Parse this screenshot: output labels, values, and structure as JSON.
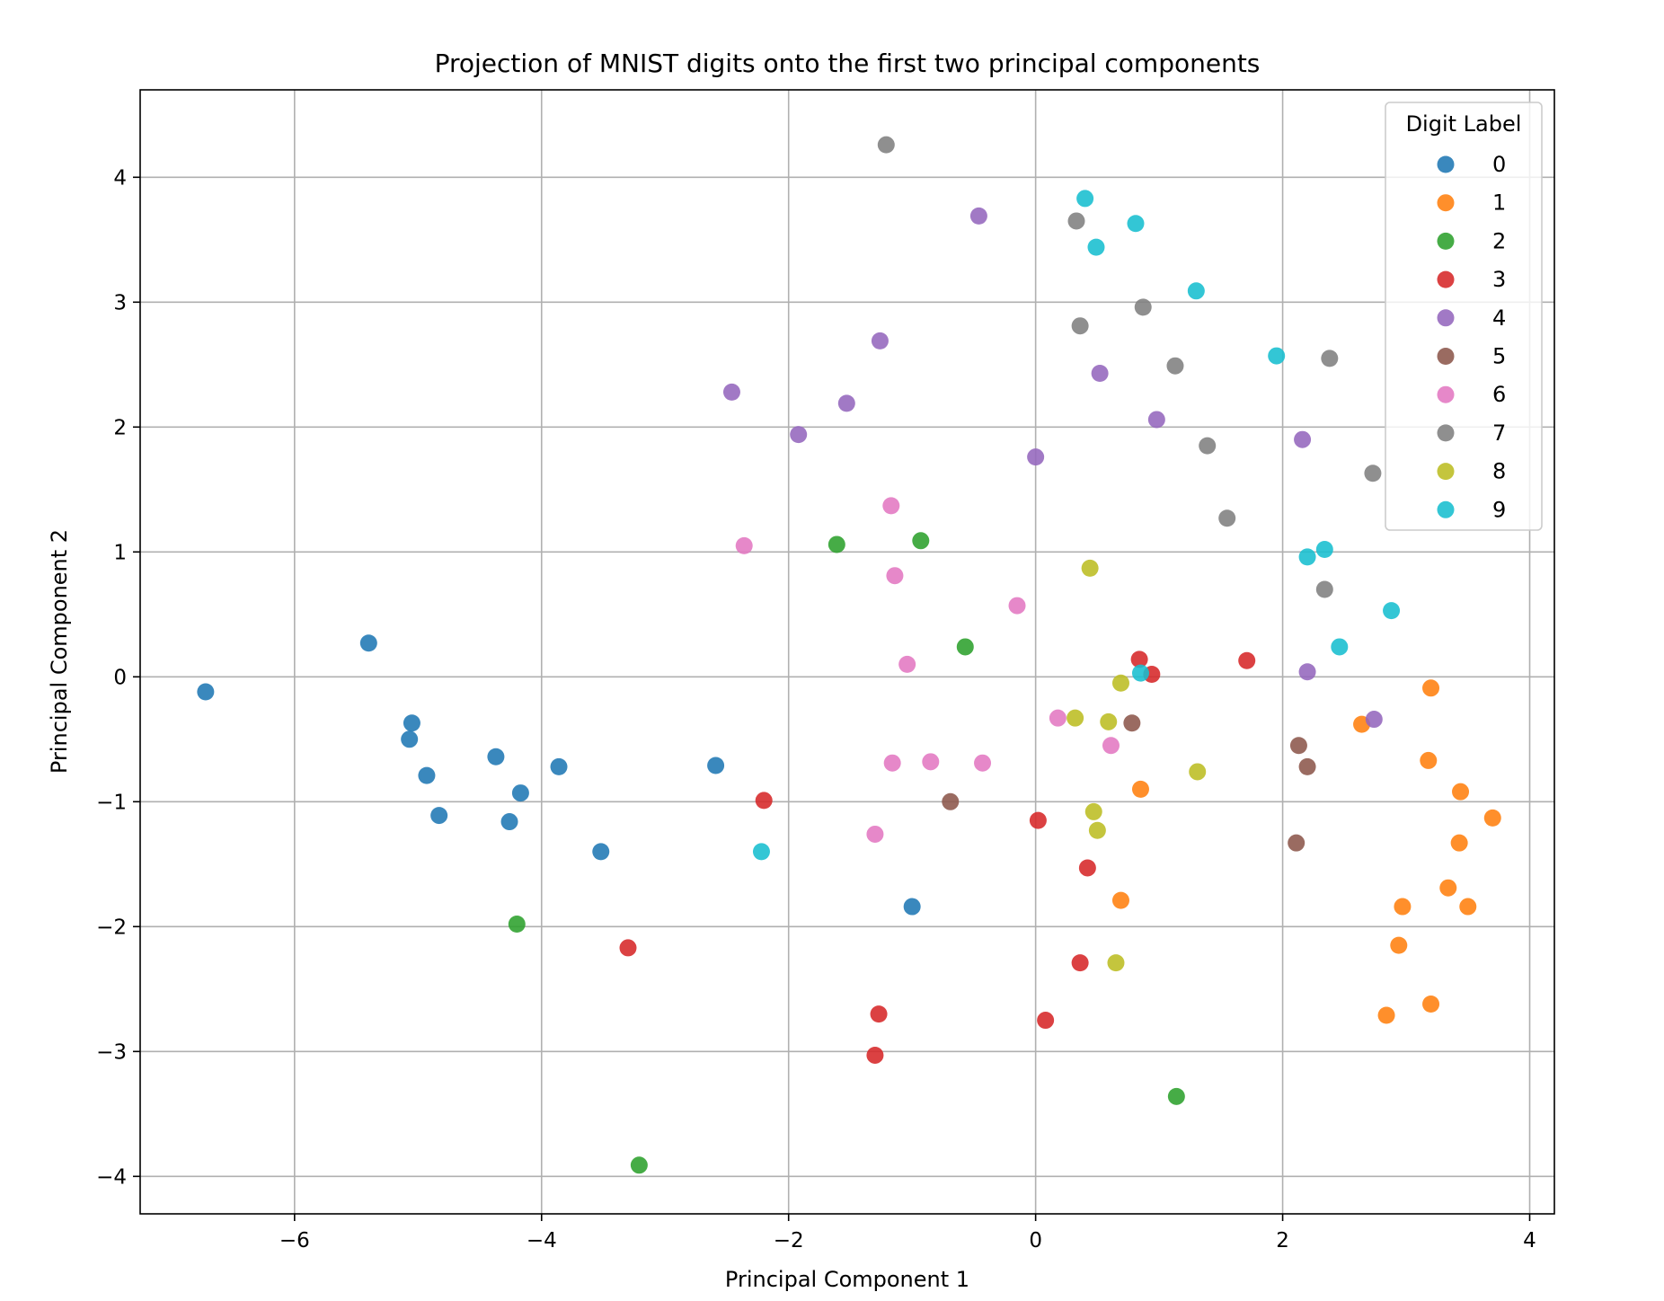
{
  "chart_data": {
    "type": "scatter",
    "title": "Projection of MNIST digits onto the first two principal components",
    "xlabel": "Principal Component 1",
    "ylabel": "Principal Component 2",
    "xlim": [
      -7.25,
      4.2
    ],
    "ylim": [
      -4.3,
      4.7
    ],
    "xticks": [
      -6,
      -4,
      -2,
      0,
      2,
      4
    ],
    "yticks": [
      -4,
      -3,
      -2,
      -1,
      0,
      1,
      2,
      3,
      4
    ],
    "xtick_labels": [
      "−6",
      "−4",
      "−2",
      "0",
      "2",
      "4"
    ],
    "ytick_labels": [
      "−4",
      "−3",
      "−2",
      "−1",
      "0",
      "1",
      "2",
      "3",
      "4"
    ],
    "grid": true,
    "legend": {
      "title": "Digit Label",
      "placement": "top-right"
    },
    "series": [
      {
        "name": "0",
        "color": "#1f77b4",
        "points": [
          [
            -6.72,
            -0.12
          ],
          [
            -5.4,
            0.27
          ],
          [
            -5.05,
            -0.37
          ],
          [
            -5.07,
            -0.5
          ],
          [
            -4.93,
            -0.79
          ],
          [
            -4.83,
            -1.11
          ],
          [
            -4.37,
            -0.64
          ],
          [
            -4.26,
            -1.16
          ],
          [
            -4.17,
            -0.93
          ],
          [
            -3.86,
            -0.72
          ],
          [
            -3.52,
            -1.4
          ],
          [
            -2.59,
            -0.71
          ],
          [
            -1.0,
            -1.84
          ]
        ]
      },
      {
        "name": "1",
        "color": "#ff7f0e",
        "points": [
          [
            3.2,
            -0.09
          ],
          [
            2.64,
            -0.38
          ],
          [
            3.18,
            -0.67
          ],
          [
            3.44,
            -0.92
          ],
          [
            3.7,
            -1.13
          ],
          [
            3.43,
            -1.33
          ],
          [
            3.34,
            -1.69
          ],
          [
            2.97,
            -1.84
          ],
          [
            3.5,
            -1.84
          ],
          [
            2.94,
            -2.15
          ],
          [
            3.2,
            -2.62
          ],
          [
            2.84,
            -2.71
          ],
          [
            0.85,
            -0.9
          ],
          [
            0.69,
            -1.79
          ]
        ]
      },
      {
        "name": "2",
        "color": "#2ca02c",
        "points": [
          [
            -1.61,
            1.06
          ],
          [
            -0.93,
            1.09
          ],
          [
            -0.57,
            0.24
          ],
          [
            -4.2,
            -1.98
          ],
          [
            -3.21,
            -3.91
          ],
          [
            1.14,
            -3.36
          ]
        ]
      },
      {
        "name": "3",
        "color": "#d62728",
        "points": [
          [
            0.84,
            0.14
          ],
          [
            0.94,
            0.02
          ],
          [
            1.71,
            0.13
          ],
          [
            -2.2,
            -0.99
          ],
          [
            0.02,
            -1.15
          ],
          [
            0.42,
            -1.53
          ],
          [
            -3.3,
            -2.17
          ],
          [
            0.36,
            -2.29
          ],
          [
            -1.27,
            -2.7
          ],
          [
            0.08,
            -2.75
          ],
          [
            -1.3,
            -3.03
          ]
        ]
      },
      {
        "name": "4",
        "color": "#9467bd",
        "points": [
          [
            -0.46,
            3.69
          ],
          [
            -1.26,
            2.69
          ],
          [
            -2.46,
            2.28
          ],
          [
            -1.53,
            2.19
          ],
          [
            -1.92,
            1.94
          ],
          [
            0.0,
            1.76
          ],
          [
            0.52,
            2.43
          ],
          [
            0.98,
            2.06
          ],
          [
            2.16,
            1.9
          ],
          [
            2.2,
            0.04
          ],
          [
            2.74,
            -0.34
          ]
        ]
      },
      {
        "name": "5",
        "color": "#8c564b",
        "points": [
          [
            0.78,
            -0.37
          ],
          [
            2.13,
            -0.55
          ],
          [
            2.2,
            -0.72
          ],
          [
            -0.69,
            -1.0
          ],
          [
            2.11,
            -1.33
          ]
        ]
      },
      {
        "name": "6",
        "color": "#e377c2",
        "points": [
          [
            -1.17,
            1.37
          ],
          [
            -2.36,
            1.05
          ],
          [
            -1.14,
            0.81
          ],
          [
            -0.15,
            0.57
          ],
          [
            -1.04,
            0.1
          ],
          [
            0.18,
            -0.33
          ],
          [
            0.61,
            -0.55
          ],
          [
            -1.16,
            -0.69
          ],
          [
            -0.85,
            -0.68
          ],
          [
            -0.43,
            -0.69
          ],
          [
            -1.3,
            -1.26
          ]
        ]
      },
      {
        "name": "7",
        "color": "#7f7f7f",
        "points": [
          [
            -1.21,
            4.26
          ],
          [
            0.33,
            3.65
          ],
          [
            0.87,
            2.96
          ],
          [
            0.36,
            2.81
          ],
          [
            1.13,
            2.49
          ],
          [
            2.38,
            2.55
          ],
          [
            1.39,
            1.85
          ],
          [
            2.73,
            1.63
          ],
          [
            1.55,
            1.27
          ],
          [
            2.34,
            0.7
          ]
        ]
      },
      {
        "name": "8",
        "color": "#bcbd22",
        "points": [
          [
            0.44,
            0.87
          ],
          [
            0.69,
            -0.05
          ],
          [
            0.32,
            -0.33
          ],
          [
            0.59,
            -0.36
          ],
          [
            1.31,
            -0.76
          ],
          [
            0.47,
            -1.08
          ],
          [
            0.5,
            -1.23
          ],
          [
            0.65,
            -2.29
          ]
        ]
      },
      {
        "name": "9",
        "color": "#17becf",
        "points": [
          [
            0.4,
            3.83
          ],
          [
            0.81,
            3.63
          ],
          [
            0.49,
            3.44
          ],
          [
            1.3,
            3.09
          ],
          [
            1.95,
            2.57
          ],
          [
            2.2,
            0.96
          ],
          [
            2.34,
            1.02
          ],
          [
            2.88,
            0.53
          ],
          [
            2.46,
            0.24
          ],
          [
            0.85,
            0.03
          ],
          [
            -2.22,
            -1.4
          ]
        ]
      }
    ]
  }
}
